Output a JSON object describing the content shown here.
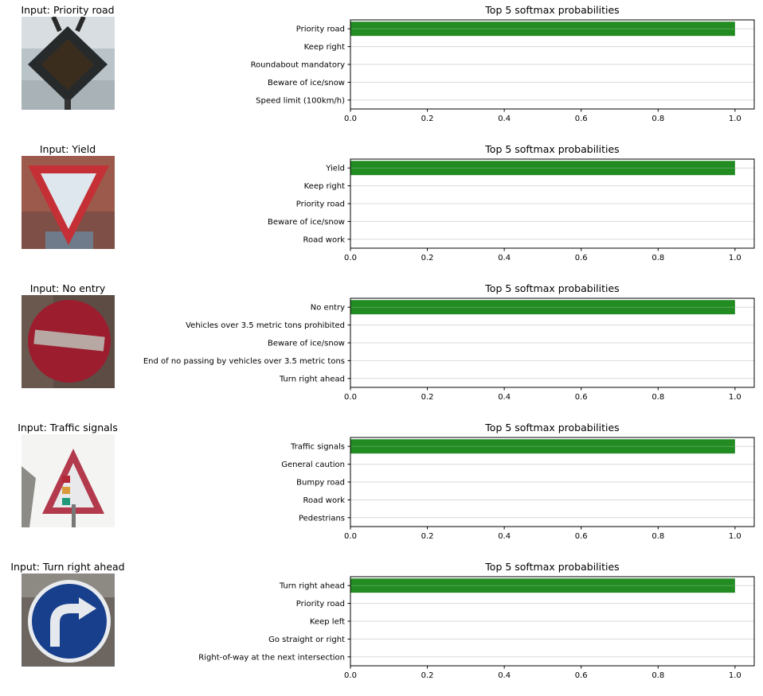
{
  "colors": {
    "bar": "#228b22",
    "grid": "#d9d9d9",
    "axis": "#000000"
  },
  "chart_data": [
    {
      "type": "bar",
      "orientation": "horizontal",
      "input_title": "Input: Priority road",
      "image": "priority-road-sign",
      "title": "Top 5 softmax probabilities",
      "categories": [
        "Priority road",
        "Keep right",
        "Roundabout mandatory",
        "Beware of ice/snow",
        "Speed limit (100km/h)"
      ],
      "values": [
        1.0,
        0.0,
        0.0,
        0.0,
        0.0
      ],
      "xlim": [
        0,
        1.05
      ],
      "xticks": [
        "0.0",
        "0.2",
        "0.4",
        "0.6",
        "0.8",
        "1.0"
      ],
      "grid": true
    },
    {
      "type": "bar",
      "orientation": "horizontal",
      "input_title": "Input: Yield",
      "image": "yield-sign",
      "title": "Top 5 softmax probabilities",
      "categories": [
        "Yield",
        "Keep right",
        "Priority road",
        "Beware of ice/snow",
        "Road work"
      ],
      "values": [
        1.0,
        0.0,
        0.0,
        0.0,
        0.0
      ],
      "xlim": [
        0,
        1.05
      ],
      "xticks": [
        "0.0",
        "0.2",
        "0.4",
        "0.6",
        "0.8",
        "1.0"
      ],
      "grid": true
    },
    {
      "type": "bar",
      "orientation": "horizontal",
      "input_title": "Input: No entry",
      "image": "no-entry-sign",
      "title": "Top 5 softmax probabilities",
      "categories": [
        "No entry",
        "Vehicles over 3.5 metric tons prohibited",
        "Beware of ice/snow",
        "End of no passing by vehicles over 3.5 metric tons",
        "Turn right ahead"
      ],
      "values": [
        1.0,
        0.0,
        0.0,
        0.0,
        0.0
      ],
      "xlim": [
        0,
        1.05
      ],
      "xticks": [
        "0.0",
        "0.2",
        "0.4",
        "0.6",
        "0.8",
        "1.0"
      ],
      "grid": true
    },
    {
      "type": "bar",
      "orientation": "horizontal",
      "input_title": "Input: Traffic signals",
      "image": "traffic-signals-sign",
      "title": "Top 5 softmax probabilities",
      "categories": [
        "Traffic signals",
        "General caution",
        "Bumpy road",
        "Road work",
        "Pedestrians"
      ],
      "values": [
        1.0,
        0.0,
        0.0,
        0.0,
        0.0
      ],
      "xlim": [
        0,
        1.05
      ],
      "xticks": [
        "0.0",
        "0.2",
        "0.4",
        "0.6",
        "0.8",
        "1.0"
      ],
      "grid": true
    },
    {
      "type": "bar",
      "orientation": "horizontal",
      "input_title": "Input: Turn right ahead",
      "image": "turn-right-ahead-sign",
      "title": "Top 5 softmax probabilities",
      "categories": [
        "Turn right ahead",
        "Priority road",
        "Keep left",
        "Go straight or right",
        "Right-of-way at the next intersection"
      ],
      "values": [
        1.0,
        0.0,
        0.0,
        0.0,
        0.0
      ],
      "xlim": [
        0,
        1.05
      ],
      "xticks": [
        "0.0",
        "0.2",
        "0.4",
        "0.6",
        "0.8",
        "1.0"
      ],
      "grid": true
    }
  ]
}
